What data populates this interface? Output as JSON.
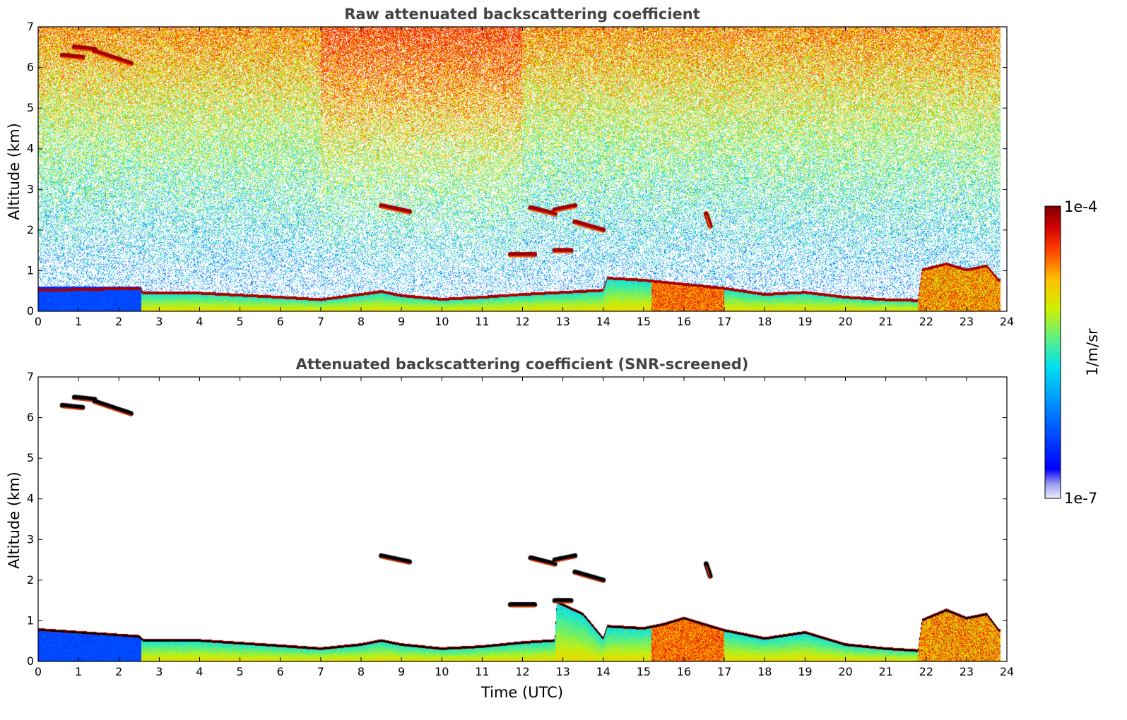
{
  "figure": {
    "colorbar": {
      "label": "1/m/sr",
      "max_label": "1e-4",
      "min_label": "1e-7",
      "scale": "log",
      "colormap": "jet"
    }
  },
  "chart_data": [
    {
      "type": "heatmap",
      "title": "Raw attenuated backscattering coefficient",
      "xlabel": "",
      "ylabel": "Altitude (km)",
      "xlim": [
        0,
        24
      ],
      "ylim": [
        0,
        7
      ],
      "xticks": [
        "0",
        "1",
        "2",
        "3",
        "4",
        "5",
        "6",
        "7",
        "8",
        "9",
        "10",
        "11",
        "12",
        "13",
        "14",
        "15",
        "16",
        "17",
        "18",
        "19",
        "20",
        "21",
        "22",
        "23",
        "24"
      ],
      "yticks": [
        "0",
        "1",
        "2",
        "3",
        "4",
        "5",
        "6",
        "7"
      ],
      "noise": "high",
      "boundary_layer_top_km": [
        [
          0,
          0.55
        ],
        [
          2.5,
          0.6
        ],
        [
          2.6,
          0.48
        ],
        [
          4,
          0.48
        ],
        [
          6,
          0.38
        ],
        [
          7,
          0.32
        ],
        [
          8,
          0.45
        ],
        [
          8.5,
          0.52
        ],
        [
          9,
          0.42
        ],
        [
          10,
          0.33
        ],
        [
          11,
          0.38
        ],
        [
          12,
          0.45
        ],
        [
          13,
          0.5
        ],
        [
          14,
          0.55
        ],
        [
          14.1,
          0.85
        ],
        [
          15,
          0.8
        ],
        [
          15.5,
          0.75
        ],
        [
          16,
          0.7
        ],
        [
          17,
          0.6
        ],
        [
          18,
          0.45
        ],
        [
          19,
          0.5
        ],
        [
          20,
          0.38
        ],
        [
          21,
          0.32
        ],
        [
          21.8,
          0.3
        ],
        [
          21.9,
          1.05
        ],
        [
          22.5,
          1.2
        ],
        [
          23,
          1.05
        ],
        [
          23.5,
          1.15
        ],
        [
          23.8,
          0.8
        ]
      ],
      "cloud_layers": [
        {
          "x": [
            0.6,
            1.1
          ],
          "y": [
            6.3,
            6.25
          ]
        },
        {
          "x": [
            0.9,
            1.4
          ],
          "y": [
            6.5,
            6.45
          ]
        },
        {
          "x": [
            1.4,
            2.3
          ],
          "y": [
            6.4,
            6.1
          ]
        },
        {
          "x": [
            8.5,
            9.2
          ],
          "y": [
            2.6,
            2.45
          ]
        },
        {
          "x": [
            12.2,
            12.8
          ],
          "y": [
            2.55,
            2.4
          ]
        },
        {
          "x": [
            12.8,
            13.3
          ],
          "y": [
            2.5,
            2.6
          ]
        },
        {
          "x": [
            13.3,
            14.0
          ],
          "y": [
            2.2,
            2.0
          ]
        },
        {
          "x": [
            11.7,
            12.3
          ],
          "y": [
            1.4,
            1.4
          ]
        },
        {
          "x": [
            12.8,
            13.2
          ],
          "y": [
            1.5,
            1.5
          ]
        },
        {
          "x": [
            16.55,
            16.65
          ],
          "y": [
            2.4,
            2.1
          ]
        }
      ]
    },
    {
      "type": "heatmap",
      "title": "Attenuated backscattering coefficient (SNR-screened)",
      "xlabel": "Time (UTC)",
      "ylabel": "Altitude (km)",
      "xlim": [
        0,
        24
      ],
      "ylim": [
        0,
        7
      ],
      "xticks": [
        "0",
        "1",
        "2",
        "3",
        "4",
        "5",
        "6",
        "7",
        "8",
        "9",
        "10",
        "11",
        "12",
        "13",
        "14",
        "15",
        "16",
        "17",
        "18",
        "19",
        "20",
        "21",
        "22",
        "23",
        "24"
      ],
      "yticks": [
        "0",
        "1",
        "2",
        "3",
        "4",
        "5",
        "6",
        "7"
      ],
      "noise": "none",
      "boundary_layer_top_km": [
        [
          0,
          0.82
        ],
        [
          2.5,
          0.65
        ],
        [
          2.6,
          0.55
        ],
        [
          4,
          0.55
        ],
        [
          6,
          0.42
        ],
        [
          7,
          0.35
        ],
        [
          8,
          0.45
        ],
        [
          8.5,
          0.55
        ],
        [
          9,
          0.45
        ],
        [
          10,
          0.35
        ],
        [
          11,
          0.4
        ],
        [
          12,
          0.5
        ],
        [
          12.8,
          0.55
        ],
        [
          12.85,
          1.5
        ],
        [
          13.5,
          1.2
        ],
        [
          14,
          0.6
        ],
        [
          14.1,
          0.9
        ],
        [
          15,
          0.85
        ],
        [
          15.5,
          0.95
        ],
        [
          16,
          1.1
        ],
        [
          17,
          0.8
        ],
        [
          18,
          0.6
        ],
        [
          19,
          0.75
        ],
        [
          20,
          0.45
        ],
        [
          21,
          0.35
        ],
        [
          21.8,
          0.3
        ],
        [
          21.9,
          1.05
        ],
        [
          22.5,
          1.3
        ],
        [
          23,
          1.1
        ],
        [
          23.5,
          1.2
        ],
        [
          23.8,
          0.8
        ]
      ],
      "cloud_layers": [
        {
          "x": [
            0.6,
            1.1
          ],
          "y": [
            6.3,
            6.25
          ]
        },
        {
          "x": [
            0.9,
            1.4
          ],
          "y": [
            6.5,
            6.45
          ]
        },
        {
          "x": [
            1.4,
            2.3
          ],
          "y": [
            6.4,
            6.1
          ]
        },
        {
          "x": [
            8.5,
            9.2
          ],
          "y": [
            2.6,
            2.45
          ]
        },
        {
          "x": [
            12.2,
            12.8
          ],
          "y": [
            2.55,
            2.4
          ]
        },
        {
          "x": [
            12.8,
            13.3
          ],
          "y": [
            2.5,
            2.6
          ]
        },
        {
          "x": [
            13.3,
            14.0
          ],
          "y": [
            2.2,
            2.0
          ]
        },
        {
          "x": [
            11.7,
            12.3
          ],
          "y": [
            1.4,
            1.4
          ]
        },
        {
          "x": [
            12.8,
            13.2
          ],
          "y": [
            1.5,
            1.5
          ]
        },
        {
          "x": [
            16.55,
            16.65
          ],
          "y": [
            2.4,
            2.1
          ]
        }
      ]
    }
  ]
}
